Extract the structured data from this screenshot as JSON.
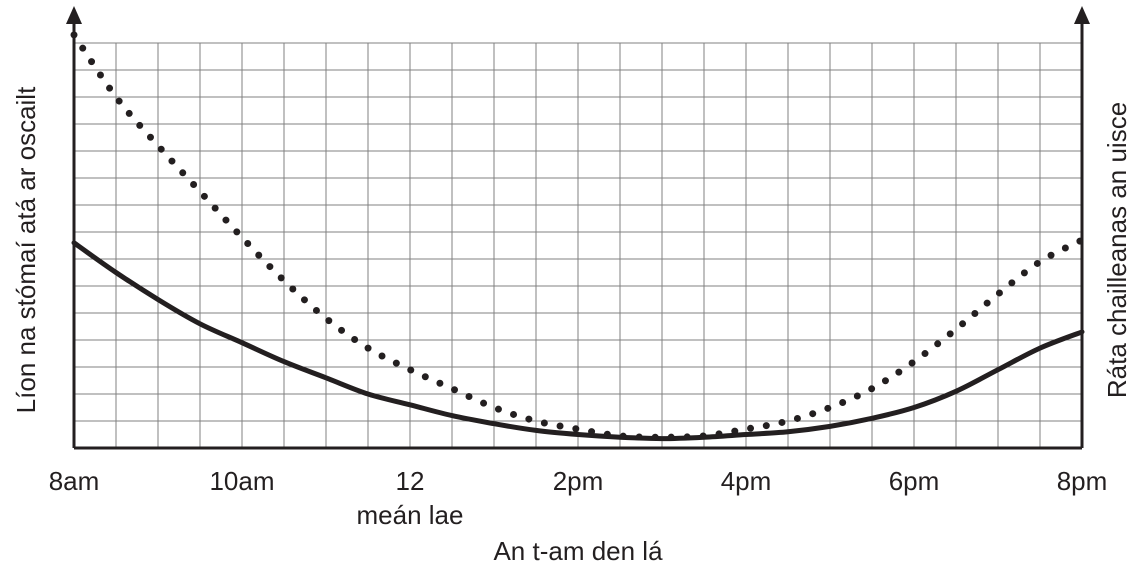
{
  "chart_data": {
    "type": "line",
    "title": "",
    "xlabel": "An t-am den lá",
    "ylabel_left": "Líon na stómaí atá ar oscailt",
    "ylabel_right": "Ráta chailleanas an uisce",
    "x_ticks": [
      {
        "value": 8,
        "label": "8am",
        "sublabel": ""
      },
      {
        "value": 10,
        "label": "10am",
        "sublabel": ""
      },
      {
        "value": 12,
        "label": "12",
        "sublabel": "meán lae"
      },
      {
        "value": 14,
        "label": "2pm",
        "sublabel": ""
      },
      {
        "value": 16,
        "label": "4pm",
        "sublabel": ""
      },
      {
        "value": 18,
        "label": "6pm",
        "sublabel": ""
      },
      {
        "value": 20,
        "label": "8pm",
        "sublabel": ""
      }
    ],
    "xlim": [
      8,
      20
    ],
    "ylim": [
      0,
      15
    ],
    "grid": true,
    "colors": {
      "line": "#231f20",
      "grid": "#808080"
    },
    "series": [
      {
        "style": "solid",
        "x": [
          8,
          8.5,
          9,
          9.5,
          10,
          10.5,
          11,
          11.5,
          12,
          12.5,
          13,
          13.5,
          14,
          14.5,
          15,
          15.5,
          16,
          16.5,
          17,
          17.5,
          18,
          18.5,
          19,
          19.5,
          20
        ],
        "values": [
          7.6,
          6.5,
          5.5,
          4.6,
          3.9,
          3.2,
          2.6,
          2.0,
          1.6,
          1.2,
          0.9,
          0.65,
          0.5,
          0.4,
          0.35,
          0.4,
          0.5,
          0.6,
          0.8,
          1.1,
          1.5,
          2.1,
          2.9,
          3.7,
          4.3
        ]
      },
      {
        "style": "dotted",
        "x": [
          8,
          8.5,
          9,
          9.5,
          10,
          10.5,
          11,
          11.5,
          12,
          12.5,
          13,
          13.5,
          14,
          14.5,
          15,
          15.5,
          16,
          16.5,
          17,
          17.5,
          18,
          18.5,
          19,
          19.5,
          20
        ],
        "values": [
          15.3,
          13.0,
          11.2,
          9.5,
          7.8,
          6.2,
          4.8,
          3.7,
          2.9,
          2.2,
          1.5,
          1.0,
          0.7,
          0.45,
          0.4,
          0.45,
          0.7,
          1.0,
          1.5,
          2.2,
          3.2,
          4.4,
          5.7,
          6.9,
          7.7
        ]
      }
    ]
  }
}
